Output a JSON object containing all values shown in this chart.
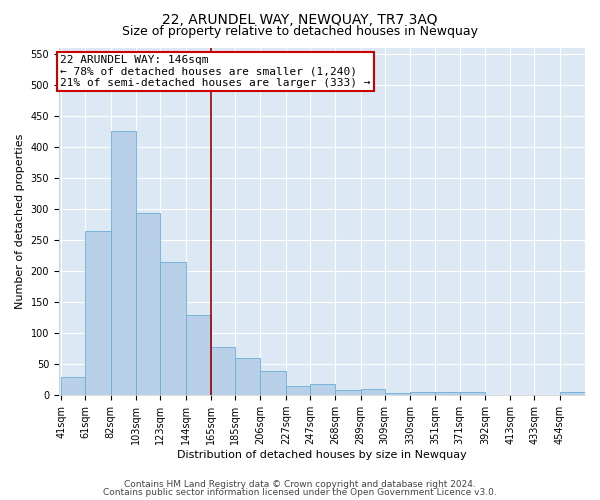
{
  "title": "22, ARUNDEL WAY, NEWQUAY, TR7 3AQ",
  "subtitle": "Size of property relative to detached houses in Newquay",
  "xlabel": "Distribution of detached houses by size in Newquay",
  "ylabel": "Number of detached properties",
  "bar_values": [
    30,
    265,
    425,
    293,
    215,
    130,
    77,
    60,
    39,
    15,
    18,
    8,
    10,
    3,
    5,
    5,
    5,
    0,
    0,
    0,
    5
  ],
  "bin_edges": [
    41,
    61,
    82,
    103,
    123,
    144,
    165,
    185,
    206,
    227,
    247,
    268,
    289,
    309,
    330,
    351,
    371,
    392,
    413,
    433,
    454
  ],
  "tick_labels": [
    "41sqm",
    "61sqm",
    "82sqm",
    "103sqm",
    "123sqm",
    "144sqm",
    "165sqm",
    "185sqm",
    "206sqm",
    "227sqm",
    "247sqm",
    "268sqm",
    "289sqm",
    "309sqm",
    "330sqm",
    "351sqm",
    "371sqm",
    "392sqm",
    "413sqm",
    "433sqm",
    "454sqm"
  ],
  "bar_color": "#b8d0e8",
  "bar_edgecolor": "#6aaed6",
  "vline_x_index": 5,
  "vline_color": "#990000",
  "annotation_text": "22 ARUNDEL WAY: 146sqm\n← 78% of detached houses are smaller (1,240)\n21% of semi-detached houses are larger (333) →",
  "annotation_box_color": "#ffffff",
  "annotation_box_edgecolor": "#cc0000",
  "ylim": [
    0,
    560
  ],
  "yticks": [
    0,
    50,
    100,
    150,
    200,
    250,
    300,
    350,
    400,
    450,
    500,
    550
  ],
  "footer_line1": "Contains HM Land Registry data © Crown copyright and database right 2024.",
  "footer_line2": "Contains public sector information licensed under the Open Government Licence v3.0.",
  "plot_background": "#dce9f5",
  "title_fontsize": 10,
  "subtitle_fontsize": 9,
  "axis_label_fontsize": 8,
  "tick_fontsize": 7,
  "footer_fontsize": 6.5,
  "annotation_fontsize": 8
}
